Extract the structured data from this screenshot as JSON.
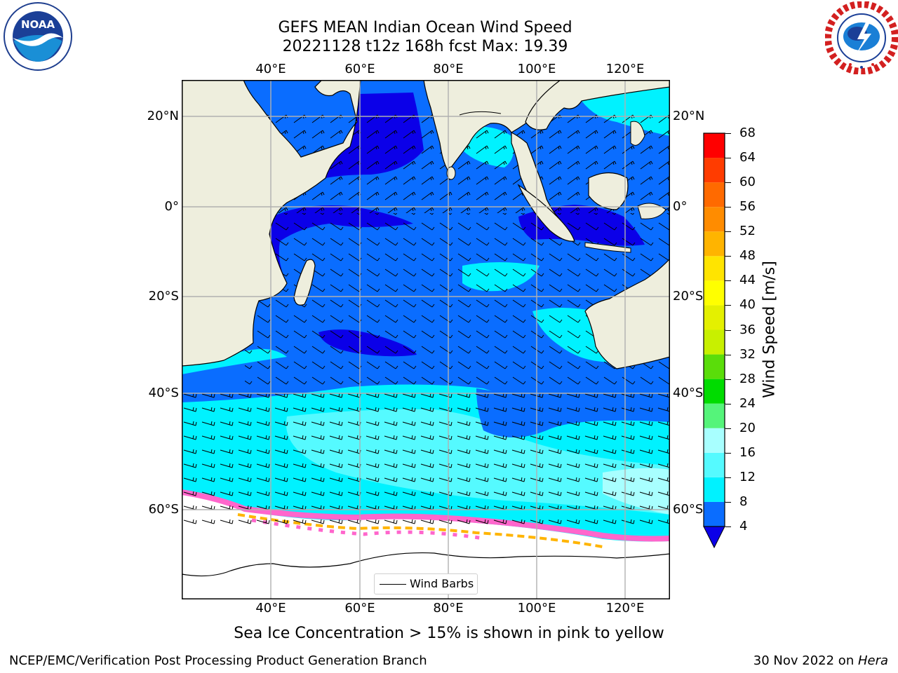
{
  "header": {
    "title_line1": "GEFS MEAN Indian Ocean Wind Speed",
    "title_line2": "20221128 t12z 168h fcst   Max: 19.39"
  },
  "logos": {
    "left": "noaa-logo",
    "right": "nws-logo"
  },
  "map": {
    "lon_labels": [
      "40°E",
      "60°E",
      "80°E",
      "100°E",
      "120°E"
    ],
    "lat_labels": [
      "20°N",
      "0°",
      "20°S",
      "40°S",
      "60°S"
    ],
    "legend_label": "Wind Barbs",
    "colors": {
      "land": "#eeeedd",
      "ocean_ice": "#ffffff",
      "coastline": "#000000",
      "gridline": "#b0b0b0"
    }
  },
  "colorbar": {
    "label": "Wind Speed [m/s]",
    "tick_labels": [
      "4",
      "8",
      "12",
      "16",
      "20",
      "24",
      "28",
      "32",
      "36",
      "40",
      "44",
      "48",
      "52",
      "56",
      "60",
      "64",
      "68"
    ],
    "bands": [
      {
        "from": 0,
        "to": 4,
        "color": "#0b00e8"
      },
      {
        "from": 4,
        "to": 8,
        "color": "#0a6dff"
      },
      {
        "from": 8,
        "to": 12,
        "color": "#00f2ff"
      },
      {
        "from": 12,
        "to": 16,
        "color": "#55faff"
      },
      {
        "from": 16,
        "to": 20,
        "color": "#a8ffff"
      },
      {
        "from": 20,
        "to": 24,
        "color": "#55f47a"
      },
      {
        "from": 24,
        "to": 28,
        "color": "#00dc00"
      },
      {
        "from": 28,
        "to": 32,
        "color": "#5add0a"
      },
      {
        "from": 32,
        "to": 36,
        "color": "#c8f000"
      },
      {
        "from": 36,
        "to": 40,
        "color": "#e4f000"
      },
      {
        "from": 40,
        "to": 44,
        "color": "#ffff00"
      },
      {
        "from": 44,
        "to": 48,
        "color": "#ffe400"
      },
      {
        "from": 48,
        "to": 52,
        "color": "#ffb400"
      },
      {
        "from": 52,
        "to": 56,
        "color": "#ff8c00"
      },
      {
        "from": 56,
        "to": 60,
        "color": "#ff6a00"
      },
      {
        "from": 60,
        "to": 64,
        "color": "#ff3c00"
      },
      {
        "from": 64,
        "to": 68,
        "color": "#ff0000"
      }
    ]
  },
  "subtitle": "Sea Ice Concentration > 15% is shown in pink to yellow",
  "footer": {
    "left": "NCEP/EMC/Verification Post Processing Product Generation Branch",
    "right_prefix": "30 Nov 2022 on ",
    "right_italic": "Hera"
  }
}
